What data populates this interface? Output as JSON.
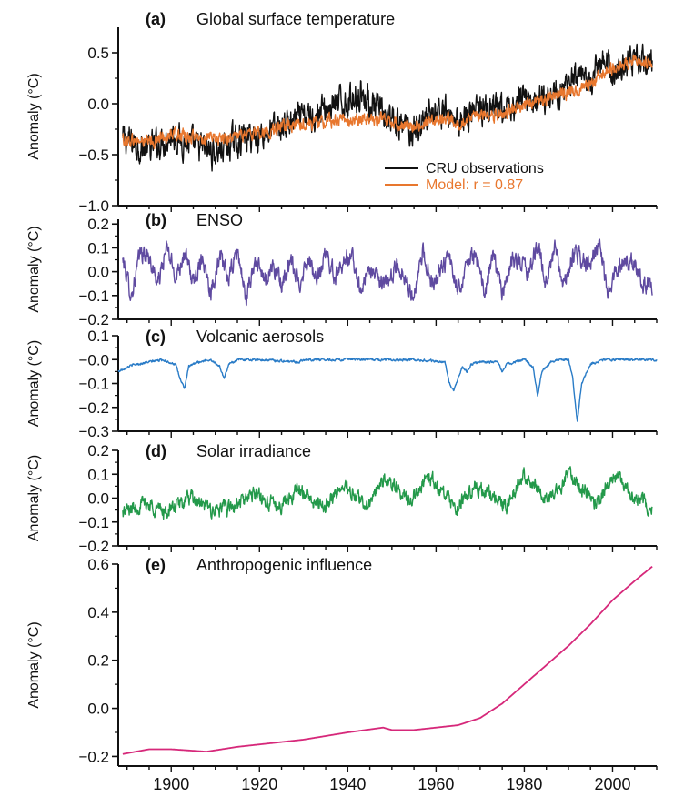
{
  "chart_data": [
    {
      "panel": "a",
      "type": "line",
      "letter": "(a)",
      "title": "Global surface temperature",
      "ylabel": "Anomaly (°C)",
      "ylim": [
        -1.0,
        0.75
      ],
      "yticks": [
        -1.0,
        -0.5,
        0.0,
        0.5
      ],
      "ytick_labels": [
        "−1.0",
        "−0.5",
        "0.0",
        "0.5"
      ],
      "xlim": [
        1888,
        2010
      ],
      "legend": [
        {
          "label": "CRU observations",
          "color": "#111111"
        },
        {
          "label": "Model: r = 0.87",
          "color": "#e8772e"
        }
      ],
      "series": [
        {
          "name": "CRU observations",
          "color": "#111111",
          "noise": 0.12,
          "x": [
            1889,
            1895,
            1900,
            1905,
            1910,
            1915,
            1920,
            1925,
            1930,
            1935,
            1940,
            1943,
            1945,
            1950,
            1955,
            1960,
            1965,
            1970,
            1975,
            1980,
            1985,
            1990,
            1995,
            1998,
            2000,
            2005,
            2009
          ],
          "y": [
            -0.35,
            -0.45,
            -0.3,
            -0.42,
            -0.48,
            -0.35,
            -0.3,
            -0.22,
            -0.15,
            -0.05,
            0.02,
            0.12,
            0.0,
            -0.2,
            -0.25,
            -0.05,
            -0.15,
            -0.05,
            -0.1,
            0.05,
            0.05,
            0.2,
            0.2,
            0.45,
            0.3,
            0.45,
            0.42
          ]
        },
        {
          "name": "Model: r = 0.87",
          "color": "#e8772e",
          "noise": 0.05,
          "x": [
            1889,
            1895,
            1900,
            1905,
            1910,
            1915,
            1920,
            1925,
            1930,
            1935,
            1940,
            1945,
            1950,
            1955,
            1960,
            1965,
            1970,
            1975,
            1980,
            1985,
            1990,
            1995,
            2000,
            2005,
            2009
          ],
          "y": [
            -0.35,
            -0.38,
            -0.3,
            -0.33,
            -0.35,
            -0.32,
            -0.28,
            -0.24,
            -0.2,
            -0.18,
            -0.15,
            -0.15,
            -0.18,
            -0.22,
            -0.15,
            -0.18,
            -0.12,
            -0.12,
            0.0,
            0.05,
            0.1,
            0.2,
            0.35,
            0.42,
            0.4
          ]
        }
      ]
    },
    {
      "panel": "b",
      "type": "line",
      "letter": "(b)",
      "title": "ENSO",
      "ylabel": "Anomaly (°C)",
      "ylim": [
        -0.2,
        0.22
      ],
      "yticks": [
        -0.2,
        -0.1,
        0.0,
        0.1,
        0.2
      ],
      "ytick_labels": [
        "−0.2",
        "−0.1",
        "0.0",
        "0.1",
        "0.2"
      ],
      "xlim": [
        1888,
        2010
      ],
      "series": [
        {
          "name": "",
          "color": "#5f4aa0",
          "noise": 0.03,
          "x": [
            1889,
            1891,
            1893,
            1895,
            1897,
            1899,
            1901,
            1903,
            1905,
            1907,
            1909,
            1911,
            1913,
            1915,
            1917,
            1919,
            1921,
            1923,
            1925,
            1927,
            1929,
            1931,
            1933,
            1935,
            1937,
            1939,
            1941,
            1943,
            1945,
            1947,
            1949,
            1951,
            1953,
            1955,
            1957,
            1959,
            1961,
            1963,
            1965,
            1967,
            1969,
            1971,
            1973,
            1975,
            1977,
            1979,
            1981,
            1983,
            1985,
            1987,
            1989,
            1991,
            1993,
            1995,
            1997,
            1999,
            2001,
            2003,
            2005,
            2007,
            2009
          ],
          "y": [
            0.05,
            -0.1,
            0.08,
            0.06,
            -0.05,
            0.1,
            -0.02,
            0.08,
            -0.05,
            0.07,
            -0.08,
            0.06,
            -0.03,
            0.09,
            -0.12,
            0.05,
            -0.04,
            0.03,
            -0.06,
            0.04,
            -0.05,
            0.06,
            -0.05,
            0.08,
            -0.02,
            0.05,
            0.06,
            -0.08,
            0.02,
            -0.04,
            -0.06,
            0.03,
            -0.02,
            -0.12,
            0.08,
            -0.05,
            0.02,
            0.05,
            -0.08,
            0.04,
            0.07,
            -0.1,
            0.08,
            -0.1,
            0.04,
            0.05,
            -0.02,
            0.12,
            -0.05,
            0.1,
            -0.08,
            0.08,
            0.05,
            0.03,
            0.12,
            -0.1,
            0.02,
            0.05,
            0.03,
            -0.05,
            -0.05
          ]
        }
      ]
    },
    {
      "panel": "c",
      "type": "line",
      "letter": "(c)",
      "title": "Volcanic aerosols",
      "ylabel": "Anomaly (°C)",
      "ylim": [
        -0.3,
        0.1
      ],
      "yticks": [
        -0.3,
        -0.2,
        -0.1,
        0.0,
        0.1
      ],
      "ytick_labels": [
        "−0.3",
        "−0.2",
        "−0.1",
        "−0.0",
        "0.1"
      ],
      "xlim": [
        1888,
        2010
      ],
      "series": [
        {
          "name": "",
          "color": "#2a7cc7",
          "noise": 0.004,
          "x": [
            1888,
            1890,
            1892,
            1895,
            1898,
            1901,
            1902,
            1903,
            1904,
            1906,
            1909,
            1911,
            1912,
            1913,
            1915,
            1920,
            1929,
            1930,
            1935,
            1945,
            1955,
            1962,
            1963,
            1964,
            1966,
            1967,
            1968,
            1970,
            1974,
            1975,
            1976,
            1978,
            1980,
            1982,
            1983,
            1984,
            1986,
            1988,
            1990,
            1991,
            1992,
            1993,
            1995,
            1998,
            2000,
            2005,
            2010
          ],
          "y": [
            -0.05,
            -0.03,
            -0.02,
            -0.01,
            0.0,
            -0.02,
            -0.08,
            -0.12,
            -0.03,
            -0.01,
            0.0,
            -0.03,
            -0.08,
            -0.02,
            0.0,
            0.0,
            -0.01,
            0.0,
            0.0,
            0.0,
            0.0,
            -0.01,
            -0.1,
            -0.13,
            -0.03,
            -0.05,
            -0.02,
            -0.01,
            -0.01,
            -0.05,
            -0.02,
            -0.01,
            0.0,
            -0.03,
            -0.15,
            -0.05,
            -0.01,
            0.0,
            0.0,
            -0.08,
            -0.26,
            -0.1,
            -0.02,
            0.0,
            0.0,
            0.0,
            0.0
          ]
        }
      ]
    },
    {
      "panel": "d",
      "type": "line",
      "letter": "(d)",
      "title": "Solar irradiance",
      "ylabel": "Anomaly (°C)",
      "ylim": [
        -0.2,
        0.2
      ],
      "yticks": [
        -0.2,
        -0.1,
        0.0,
        0.1,
        0.2
      ],
      "ytick_labels": [
        "−0.2",
        "−0.1",
        "0.0",
        "0.1",
        "0.2"
      ],
      "xlim": [
        1888,
        2010
      ],
      "series": [
        {
          "name": "",
          "color": "#23994a",
          "noise": 0.025,
          "x": [
            1889,
            1894,
            1899,
            1904,
            1909,
            1914,
            1919,
            1924,
            1929,
            1934,
            1939,
            1944,
            1949,
            1954,
            1958,
            1964,
            1969,
            1976,
            1980,
            1986,
            1990,
            1996,
            2001,
            2005,
            2009
          ],
          "y": [
            -0.06,
            -0.02,
            -0.06,
            0.0,
            -0.05,
            -0.04,
            0.02,
            -0.04,
            0.04,
            -0.04,
            0.05,
            -0.03,
            0.08,
            -0.02,
            0.1,
            -0.04,
            0.05,
            -0.03,
            0.1,
            -0.01,
            0.1,
            -0.02,
            0.1,
            0.0,
            -0.04
          ]
        }
      ]
    },
    {
      "panel": "e",
      "type": "line",
      "letter": "(e)",
      "title": "Anthropogenic influence",
      "ylabel": "Anomaly (°C)",
      "ylim": [
        -0.24,
        0.6
      ],
      "yticks": [
        -0.2,
        0.0,
        0.2,
        0.4,
        0.6
      ],
      "ytick_labels": [
        "−0.2",
        "0.0",
        "0.2",
        "0.4",
        "0.6"
      ],
      "xlim": [
        1888,
        2010
      ],
      "xticks": [
        1900,
        1920,
        1940,
        1960,
        1980,
        2000
      ],
      "xtick_labels": [
        "1900",
        "1920",
        "1940",
        "1960",
        "1980",
        "2000"
      ],
      "series": [
        {
          "name": "",
          "color": "#d6287a",
          "noise": 0,
          "x": [
            1889,
            1895,
            1900,
            1908,
            1915,
            1920,
            1930,
            1940,
            1948,
            1950,
            1955,
            1960,
            1965,
            1970,
            1975,
            1980,
            1985,
            1990,
            1995,
            2000,
            2005,
            2009
          ],
          "y": [
            -0.19,
            -0.17,
            -0.17,
            -0.18,
            -0.16,
            -0.15,
            -0.13,
            -0.1,
            -0.08,
            -0.09,
            -0.09,
            -0.08,
            -0.07,
            -0.04,
            0.02,
            0.1,
            0.18,
            0.26,
            0.35,
            0.45,
            0.53,
            0.59
          ]
        }
      ]
    }
  ]
}
